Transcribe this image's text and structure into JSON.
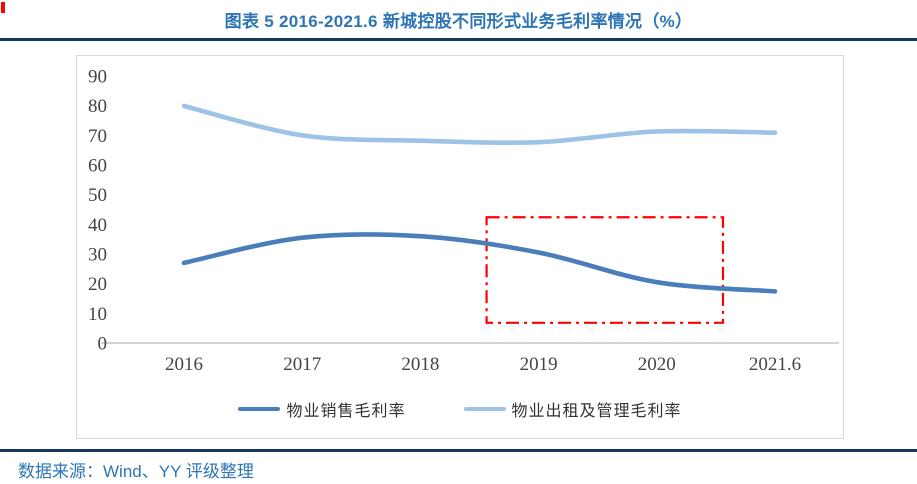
{
  "header": {
    "title": "图表 5 2016-2021.6 新城控股不同形式业务毛利率情况（%）"
  },
  "footer": {
    "source": "数据来源：Wind、YY 评级整理"
  },
  "colors": {
    "title_blue": "#2E75B6",
    "rule_navy": "#17375E",
    "sales_line_blue": "#4A7EBB",
    "rental_line_light_blue": "#9DC3E6",
    "highlight_red": "#FF0000",
    "axis_line_gray": "#C6C6C6",
    "box_border_gray": "#D9D9D9",
    "tick_text_gray": "#444444"
  },
  "chart_data": {
    "type": "line",
    "smooth": true,
    "grid": false,
    "title": "图表 5 2016-2021.6 新城控股不同形式业务毛利率情况（%）",
    "xlabel": "",
    "ylabel": "",
    "categories": [
      "2016",
      "2017",
      "2018",
      "2019",
      "2020",
      "2021.6"
    ],
    "series": [
      {
        "name": "物业销售毛利率",
        "color": "#4A7EBB",
        "values": [
          27.0,
          35.5,
          36.0,
          30.5,
          20.5,
          17.4
        ]
      },
      {
        "name": "物业出租及管理毛利率",
        "color": "#9DC3E6",
        "values": [
          79.9,
          70.0,
          68.2,
          67.7,
          71.3,
          70.9
        ]
      }
    ],
    "ylim": [
      0,
      90
    ],
    "yticks": [
      90,
      80,
      70,
      60,
      50,
      40,
      30,
      20,
      10,
      0
    ],
    "legend_position": "bottom",
    "annotation": {
      "type": "rect",
      "style": "dash-dot",
      "color": "#FF0000",
      "x_index_range": [
        2.56,
        4.56
      ],
      "y_range": [
        6.8,
        42.4
      ]
    }
  }
}
